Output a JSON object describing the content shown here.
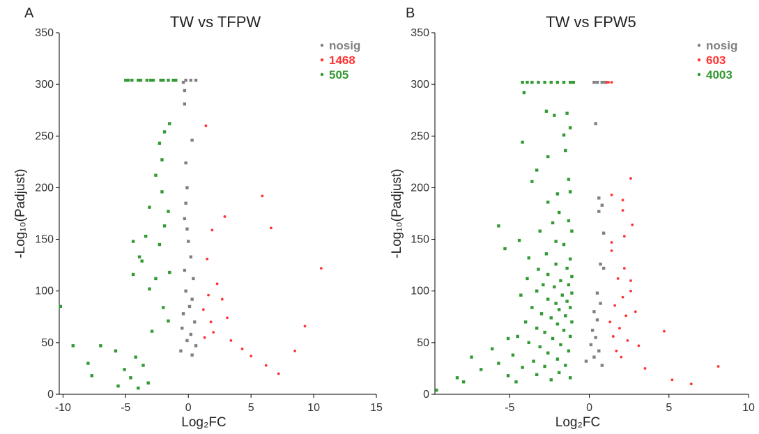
{
  "colors": {
    "nosig": "#808080",
    "up": "#ff3333",
    "down": "#339933"
  },
  "chart_data": [
    {
      "type": "scatter",
      "panel_label": "A",
      "title": "TW vs TFPW",
      "xlabel": "Log₂FC",
      "ylabel": "-Log₁₀(Padjust)",
      "xlim": [
        -10.3,
        15
      ],
      "ylim": [
        0,
        350
      ],
      "xticks": [
        -10,
        -5,
        0,
        5,
        10,
        15
      ],
      "yticks": [
        0,
        50,
        100,
        150,
        200,
        250,
        300,
        350
      ],
      "legend_position": "top-right",
      "legend": [
        {
          "key": "nosig",
          "label": "nosig"
        },
        {
          "key": "up",
          "label": "1468"
        },
        {
          "key": "down",
          "label": "505"
        }
      ],
      "series": [
        {
          "key": "nosig",
          "points": [
            [
              0.2,
              304
            ],
            [
              0.6,
              304
            ],
            [
              -0.2,
              304
            ],
            [
              -0.4,
              302
            ],
            [
              -0.3,
              294
            ],
            [
              -0.3,
              281
            ],
            [
              0.3,
              246
            ],
            [
              -0.2,
              224
            ],
            [
              -0.1,
              200
            ],
            [
              -0.2,
              185
            ],
            [
              -0.3,
              170
            ],
            [
              -0.1,
              160
            ],
            [
              0.0,
              148
            ],
            [
              0.2,
              133
            ],
            [
              -0.3,
              120
            ],
            [
              0.4,
              112
            ],
            [
              -0.2,
              100
            ],
            [
              0.3,
              92
            ],
            [
              0.1,
              85
            ],
            [
              -0.4,
              78
            ],
            [
              0.5,
              70
            ],
            [
              -0.5,
              64
            ],
            [
              0.2,
              58
            ],
            [
              -0.1,
              52
            ],
            [
              0.6,
              47
            ],
            [
              -0.6,
              42
            ],
            [
              0.3,
              38
            ]
          ]
        },
        {
          "key": "up",
          "points": [
            [
              1.4,
              260
            ],
            [
              5.9,
              192
            ],
            [
              2.9,
              172
            ],
            [
              6.6,
              161
            ],
            [
              1.9,
              159
            ],
            [
              10.6,
              122
            ],
            [
              1.5,
              131
            ],
            [
              2.3,
              107
            ],
            [
              1.6,
              96
            ],
            [
              2.7,
              92
            ],
            [
              9.3,
              66
            ],
            [
              8.5,
              42
            ],
            [
              3.1,
              74
            ],
            [
              2.0,
              60
            ],
            [
              1.2,
              82
            ],
            [
              4.3,
              44
            ],
            [
              5.0,
              37
            ],
            [
              3.4,
              52
            ],
            [
              1.8,
              70
            ],
            [
              6.2,
              28
            ],
            [
              7.2,
              20
            ],
            [
              1.3,
              55
            ]
          ]
        },
        {
          "key": "down",
          "points": [
            [
              -5.0,
              304
            ],
            [
              -4.8,
              304
            ],
            [
              -4.5,
              304
            ],
            [
              -4.0,
              304
            ],
            [
              -3.8,
              304
            ],
            [
              -3.3,
              304
            ],
            [
              -3.0,
              304
            ],
            [
              -2.8,
              304
            ],
            [
              -2.2,
              304
            ],
            [
              -2.0,
              304
            ],
            [
              -1.6,
              304
            ],
            [
              -1.2,
              304
            ],
            [
              -1.0,
              304
            ],
            [
              -1.5,
              262
            ],
            [
              -1.9,
              254
            ],
            [
              -2.3,
              243
            ],
            [
              -2.1,
              227
            ],
            [
              -2.6,
              212
            ],
            [
              -2.1,
              196
            ],
            [
              -3.1,
              181
            ],
            [
              -1.6,
              177
            ],
            [
              -1.9,
              163
            ],
            [
              -3.4,
              153
            ],
            [
              -4.4,
              148
            ],
            [
              -2.3,
              145
            ],
            [
              -3.7,
              129
            ],
            [
              -3.9,
              133
            ],
            [
              -1.5,
              118
            ],
            [
              -4.4,
              116
            ],
            [
              -2.6,
              112
            ],
            [
              -3.1,
              102
            ],
            [
              -10.2,
              85
            ],
            [
              -2.0,
              84
            ],
            [
              -1.6,
              71
            ],
            [
              -2.9,
              61
            ],
            [
              -9.2,
              47
            ],
            [
              -7.0,
              47
            ],
            [
              -5.8,
              42
            ],
            [
              -4.2,
              36
            ],
            [
              -8.0,
              30
            ],
            [
              -3.6,
              28
            ],
            [
              -5.1,
              24
            ],
            [
              -7.7,
              18
            ],
            [
              -4.6,
              16
            ],
            [
              -3.2,
              11
            ],
            [
              -5.6,
              8
            ],
            [
              -4.0,
              6
            ]
          ]
        }
      ]
    },
    {
      "type": "scatter",
      "panel_label": "B",
      "title": "TW vs FPW5",
      "xlabel": "Log₂FC",
      "ylabel": "-Log₁₀(Padjust)",
      "xlim": [
        -9.7,
        10
      ],
      "ylim": [
        0,
        350
      ],
      "xticks": [
        -5,
        0,
        5,
        10
      ],
      "yticks": [
        0,
        50,
        100,
        150,
        200,
        250,
        300,
        350
      ],
      "legend_position": "top-right",
      "legend": [
        {
          "key": "nosig",
          "label": "nosig"
        },
        {
          "key": "up",
          "label": "603"
        },
        {
          "key": "down",
          "label": "4003"
        }
      ],
      "series": [
        {
          "key": "nosig",
          "points": [
            [
              0.3,
              302
            ],
            [
              0.5,
              302
            ],
            [
              0.8,
              302
            ],
            [
              1.0,
              302
            ],
            [
              0.4,
              262
            ],
            [
              0.6,
              190
            ],
            [
              0.8,
              183
            ],
            [
              0.6,
              177
            ],
            [
              0.9,
              156
            ],
            [
              0.7,
              126
            ],
            [
              0.9,
              122
            ],
            [
              0.5,
              98
            ],
            [
              0.7,
              88
            ],
            [
              0.3,
              80
            ],
            [
              0.5,
              72
            ],
            [
              0.2,
              62
            ],
            [
              0.4,
              55
            ],
            [
              0.1,
              48
            ],
            [
              0.6,
              42
            ],
            [
              0.3,
              36
            ],
            [
              -0.2,
              32
            ],
            [
              0.8,
              28
            ]
          ]
        },
        {
          "key": "up",
          "points": [
            [
              1.1,
              302
            ],
            [
              1.2,
              302
            ],
            [
              1.4,
              302
            ],
            [
              2.6,
              209
            ],
            [
              1.4,
              193
            ],
            [
              2.1,
              188
            ],
            [
              2.1,
              178
            ],
            [
              2.2,
              153
            ],
            [
              2.7,
              164
            ],
            [
              1.4,
              147
            ],
            [
              1.4,
              139
            ],
            [
              2.2,
              122
            ],
            [
              1.8,
              112
            ],
            [
              2.6,
              110
            ],
            [
              2.6,
              100
            ],
            [
              2.1,
              94
            ],
            [
              1.6,
              86
            ],
            [
              2.9,
              80
            ],
            [
              2.3,
              76
            ],
            [
              1.3,
              70
            ],
            [
              1.9,
              64
            ],
            [
              4.7,
              61
            ],
            [
              1.5,
              56
            ],
            [
              2.4,
              52
            ],
            [
              3.1,
              47
            ],
            [
              1.7,
              42
            ],
            [
              2.0,
              36
            ],
            [
              8.1,
              27
            ],
            [
              3.5,
              25
            ],
            [
              5.2,
              14
            ],
            [
              6.4,
              10
            ]
          ]
        },
        {
          "key": "down",
          "points": [
            [
              -4.2,
              302
            ],
            [
              -3.9,
              302
            ],
            [
              -3.6,
              302
            ],
            [
              -3.2,
              302
            ],
            [
              -2.8,
              302
            ],
            [
              -2.4,
              302
            ],
            [
              -2.0,
              302
            ],
            [
              -1.6,
              302
            ],
            [
              -1.2,
              302
            ],
            [
              -1.0,
              302
            ],
            [
              -4.1,
              292
            ],
            [
              -2.7,
              274
            ],
            [
              -2.2,
              270
            ],
            [
              -1.4,
              272
            ],
            [
              -4.2,
              244
            ],
            [
              -1.6,
              251
            ],
            [
              -1.2,
              258
            ],
            [
              -2.6,
              230
            ],
            [
              -1.5,
              236
            ],
            [
              -3.3,
              217
            ],
            [
              -3.6,
              206
            ],
            [
              -1.3,
              208
            ],
            [
              -2.0,
              194
            ],
            [
              -2.6,
              186
            ],
            [
              -1.2,
              196
            ],
            [
              -1.9,
              176
            ],
            [
              -2.3,
              166
            ],
            [
              -5.7,
              163
            ],
            [
              -3.1,
              158
            ],
            [
              -1.3,
              168
            ],
            [
              -4.4,
              149
            ],
            [
              -5.3,
              141
            ],
            [
              -2.1,
              148
            ],
            [
              -1.1,
              158
            ],
            [
              -3.8,
              132
            ],
            [
              -2.7,
              136
            ],
            [
              -1.6,
              145
            ],
            [
              -3.2,
              121
            ],
            [
              -2.1,
              126
            ],
            [
              -1.2,
              131
            ],
            [
              -3.9,
              112
            ],
            [
              -2.6,
              116
            ],
            [
              -1.4,
              122
            ],
            [
              -2.9,
              106
            ],
            [
              -1.8,
              110
            ],
            [
              -1.1,
              114
            ],
            [
              -4.3,
              96
            ],
            [
              -3.3,
              100
            ],
            [
              -2.2,
              104
            ],
            [
              -1.3,
              106
            ],
            [
              -2.6,
              92
            ],
            [
              -1.7,
              96
            ],
            [
              -1.1,
              98
            ],
            [
              -3.6,
              84
            ],
            [
              -2.1,
              88
            ],
            [
              -1.4,
              90
            ],
            [
              -3.0,
              78
            ],
            [
              -1.9,
              82
            ],
            [
              -1.2,
              84
            ],
            [
              -4.0,
              70
            ],
            [
              -2.4,
              74
            ],
            [
              -1.5,
              76
            ],
            [
              -3.3,
              64
            ],
            [
              -2.0,
              68
            ],
            [
              -1.1,
              70
            ],
            [
              -5.1,
              54
            ],
            [
              -4.5,
              56
            ],
            [
              -2.8,
              60
            ],
            [
              -1.6,
              62
            ],
            [
              -3.8,
              50
            ],
            [
              -2.3,
              54
            ],
            [
              -1.2,
              56
            ],
            [
              -6.1,
              44
            ],
            [
              -3.1,
              46
            ],
            [
              -1.8,
              48
            ],
            [
              -7.4,
              36
            ],
            [
              -4.8,
              38
            ],
            [
              -2.6,
              40
            ],
            [
              -1.3,
              42
            ],
            [
              -5.7,
              30
            ],
            [
              -3.5,
              32
            ],
            [
              -2.0,
              34
            ],
            [
              -6.8,
              24
            ],
            [
              -4.2,
              26
            ],
            [
              -2.8,
              27
            ],
            [
              -1.5,
              28
            ],
            [
              -8.3,
              16
            ],
            [
              -5.1,
              18
            ],
            [
              -3.3,
              19
            ],
            [
              -1.9,
              21
            ],
            [
              -9.6,
              4
            ],
            [
              -7.9,
              12
            ],
            [
              -4.6,
              12
            ],
            [
              -2.4,
              14
            ],
            [
              -1.2,
              16
            ]
          ]
        }
      ]
    }
  ]
}
